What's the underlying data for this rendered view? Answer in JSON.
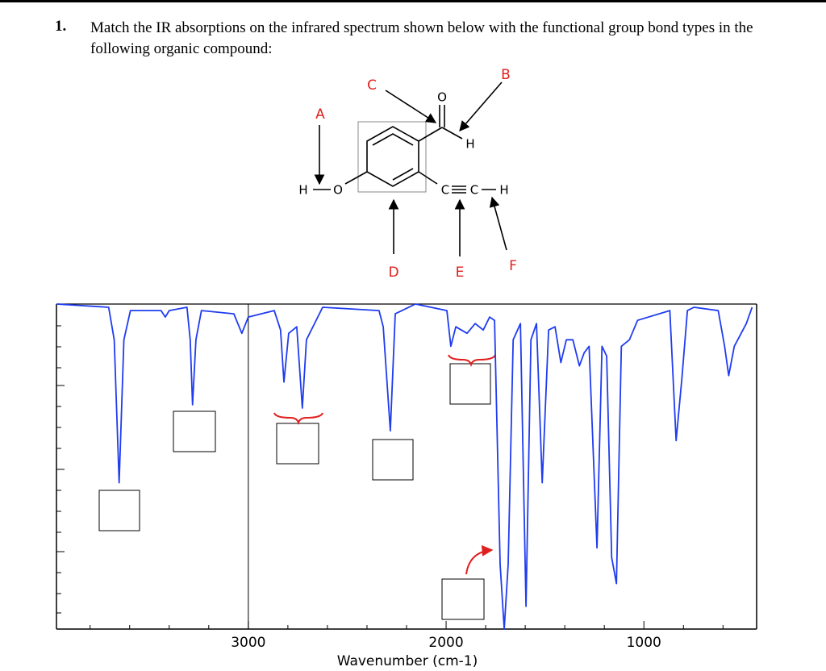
{
  "question": {
    "number": "1.",
    "text": "Match the IR absorptions on the infrared spectrum shown below with the functional group bond types in the following organic compound:"
  },
  "molecule": {
    "atoms": [
      "O",
      "H",
      "H",
      "O",
      "C",
      "C",
      "H"
    ],
    "labels": [
      "A",
      "B",
      "C",
      "D",
      "E",
      "F"
    ]
  },
  "chart_data": {
    "type": "line",
    "xlabel": "Wavenumber (cm-1)",
    "color": "#1f3cf0",
    "xlim": [
      3970,
      430
    ],
    "ylim": [
      0,
      100
    ],
    "xticks": [
      3000,
      2000,
      1000
    ],
    "xminorticks": [
      3800,
      3600,
      3400,
      3200,
      2800,
      2600,
      2400,
      2200,
      1800,
      1600,
      1400,
      1200,
      800,
      600
    ],
    "x": [
      3970,
      3706,
      3678,
      3653,
      3629,
      3596,
      3441,
      3420,
      3400,
      3310,
      3294,
      3282,
      3265,
      3237,
      3073,
      3033,
      3000,
      2869,
      2837,
      2820,
      2796,
      2755,
      2727,
      2706,
      2624,
      2339,
      2318,
      2282,
      2257,
      2155,
      1996,
      1976,
      1951,
      1894,
      1853,
      1812,
      1780,
      1755,
      1727,
      1706,
      1686,
      1661,
      1624,
      1596,
      1571,
      1543,
      1514,
      1482,
      1449,
      1420,
      1392,
      1359,
      1326,
      1302,
      1277,
      1237,
      1212,
      1188,
      1163,
      1139,
      1114,
      1073,
      1032,
      869,
      837,
      808,
      780,
      747,
      624,
      592,
      571,
      543,
      482,
      453
    ],
    "values": [
      100,
      99,
      89,
      45,
      89,
      98,
      98,
      96,
      98,
      99,
      89,
      69,
      89,
      98,
      97,
      91,
      96,
      98,
      92,
      76,
      91,
      93,
      68,
      89,
      99,
      98,
      93,
      61,
      97,
      100,
      98,
      87,
      93,
      91,
      94,
      92,
      96,
      95,
      20,
      0,
      20,
      89,
      94,
      7,
      89,
      94,
      45,
      92,
      93,
      82,
      89,
      89,
      81,
      85,
      87,
      25,
      87,
      84,
      22,
      14,
      87,
      89,
      95,
      98,
      58,
      77,
      98,
      99,
      98,
      87,
      78,
      87,
      94,
      99
    ]
  }
}
